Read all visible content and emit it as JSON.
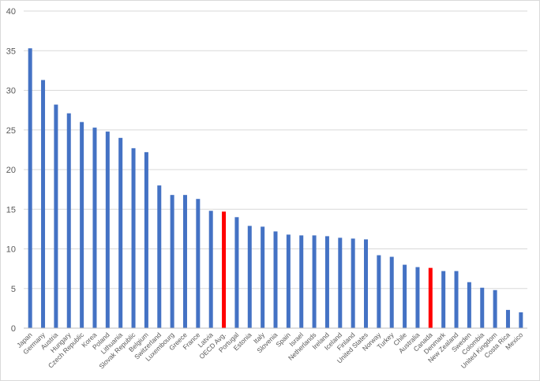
{
  "chart_data": {
    "type": "bar",
    "title": "",
    "xlabel": "",
    "ylabel": "",
    "ylim": [
      0,
      40
    ],
    "yticks": [
      0,
      5,
      10,
      15,
      20,
      25,
      30,
      35,
      40
    ],
    "grid": true,
    "legend": "none",
    "colors": {
      "default": "#4472c4",
      "highlight": "#ff0000",
      "grid": "#d9d9d9",
      "axis": "#bfbfbf",
      "text": "#595959"
    },
    "highlighted": [
      "OECD Avg.",
      "Canada"
    ],
    "categories": [
      "Japan",
      "Germany",
      "Austria",
      "Hungary",
      "Czech Republic",
      "Korea",
      "Poland",
      "Lithuania",
      "Slovak Republic",
      "Belgium",
      "Switzerland",
      "Luxembourg",
      "Greece",
      "France",
      "Latvia",
      "OECD Avg.",
      "Portugal",
      "Estonia",
      "Italy",
      "Slovenia",
      "Spain",
      "Israel",
      "Netherlands",
      "Ireland",
      "Iceland",
      "Finland",
      "United States",
      "Norway",
      "Turkey",
      "Chile",
      "Australia",
      "Canada",
      "Denmark",
      "New Zealand",
      "Sweden",
      "Colombia",
      "United Kingdom",
      "Costa Rica",
      "Mexico"
    ],
    "values": [
      35.3,
      31.3,
      28.2,
      27.1,
      26.0,
      25.3,
      24.8,
      24.0,
      22.7,
      22.2,
      18.0,
      16.8,
      16.8,
      16.3,
      14.8,
      14.7,
      14.0,
      12.9,
      12.8,
      12.2,
      11.8,
      11.7,
      11.7,
      11.6,
      11.4,
      11.3,
      11.2,
      9.2,
      9.0,
      8.0,
      7.7,
      7.6,
      7.2,
      7.2,
      5.8,
      5.1,
      4.8,
      2.3,
      2.0
    ]
  }
}
